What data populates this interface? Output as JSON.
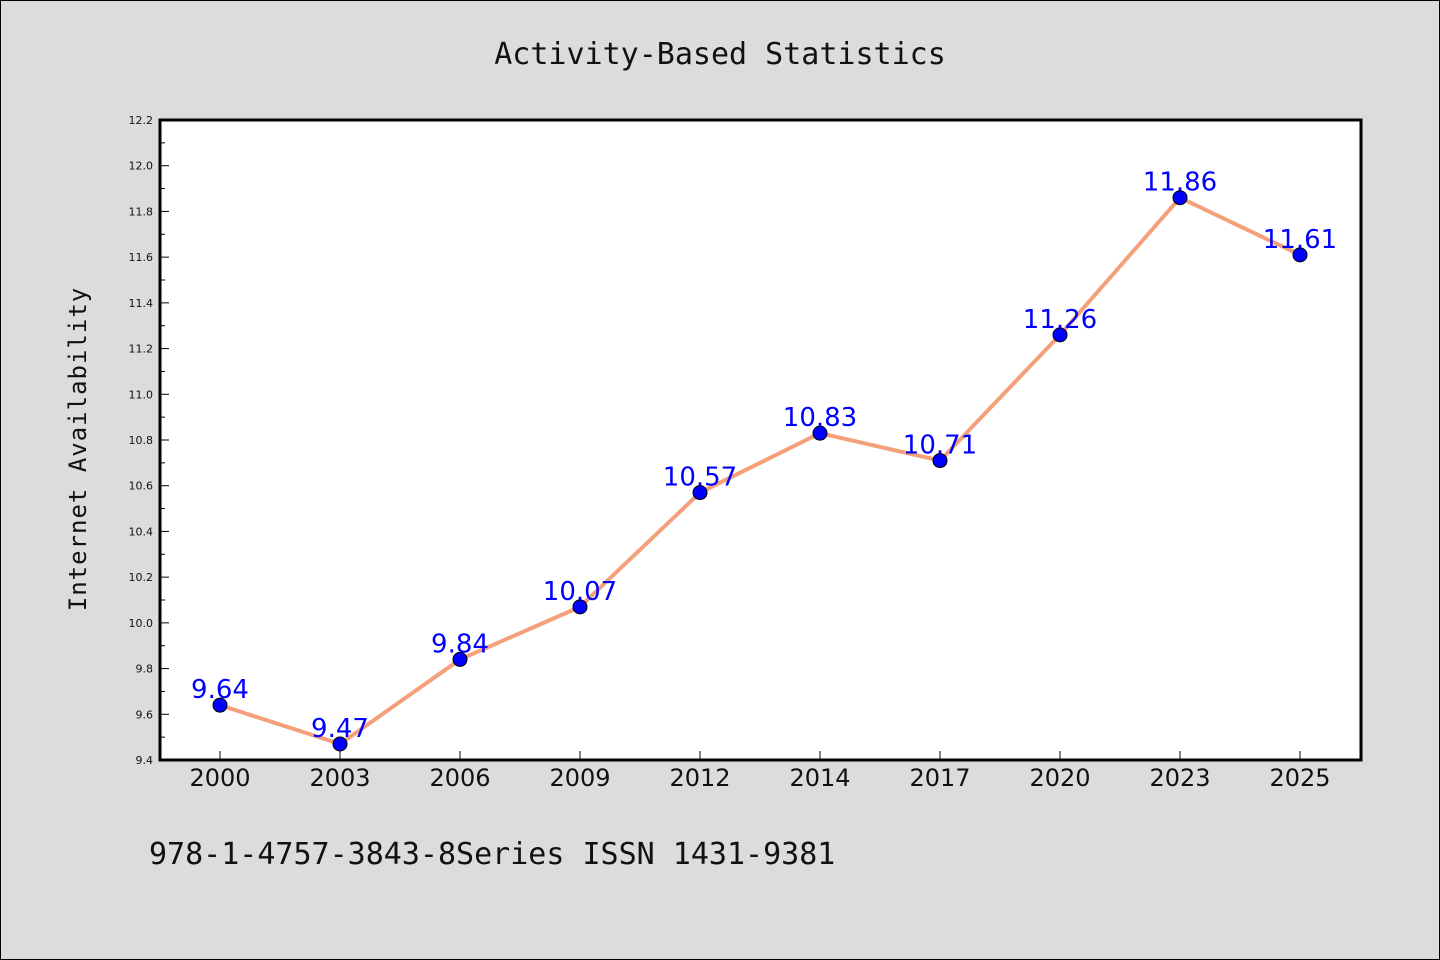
{
  "chart_data": {
    "type": "line",
    "title": "Activity-Based Statistics",
    "xlabel": "",
    "ylabel": "Internet Availability",
    "categories": [
      "2000",
      "2003",
      "2006",
      "2009",
      "2012",
      "2014",
      "2017",
      "2020",
      "2023",
      "2025"
    ],
    "values": [
      9.64,
      9.47,
      9.84,
      10.07,
      10.57,
      10.83,
      10.71,
      11.26,
      11.86,
      11.61
    ],
    "data_labels": [
      "9.64",
      "9.47",
      "9.84",
      "10.07",
      "10.57",
      "10.83",
      "10.71",
      "11.26",
      "11.86",
      "11.61"
    ],
    "ylim": [
      9.4,
      12.2
    ],
    "yticks": [
      "9.4",
      "9.6",
      "9.8",
      "10.0",
      "10.2",
      "10.4",
      "10.6",
      "10.8",
      "11.0",
      "11.2",
      "11.4",
      "11.6",
      "11.8",
      "12.0",
      "12.2"
    ],
    "grid": false,
    "legend": "none",
    "line_color": "#f4a07a",
    "marker_color": "#0000ff",
    "label_color": "#0000ff",
    "plot_background": "#ffffff",
    "figure_background": "#dcdcdc"
  },
  "footer": {
    "text": "978-1-4757-3843-8Series ISSN 1431-9381"
  }
}
